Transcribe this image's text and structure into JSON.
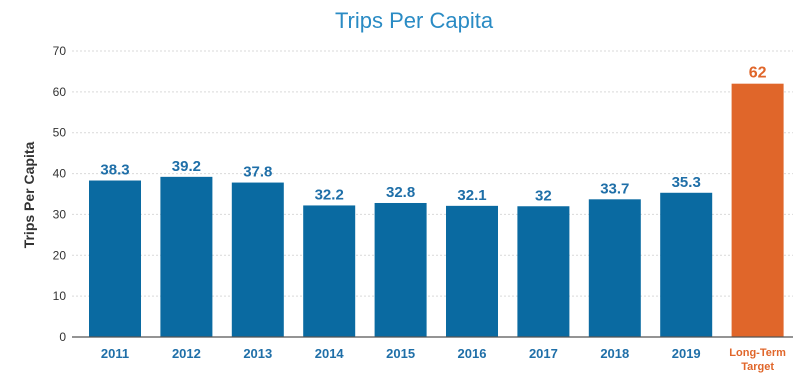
{
  "chart_data": {
    "type": "bar",
    "title": "Trips Per Capita",
    "xlabel": "",
    "ylabel": "Trips Per Capita",
    "ylim": [
      0,
      70
    ],
    "yticks": [
      0,
      10,
      20,
      30,
      40,
      50,
      60,
      70
    ],
    "grid": true,
    "legend": "none",
    "categories": [
      "2011",
      "2012",
      "2013",
      "2014",
      "2015",
      "2016",
      "2017",
      "2018",
      "2019",
      "Long-Term Target"
    ],
    "category_lines": [
      [
        "2011"
      ],
      [
        "2012"
      ],
      [
        "2013"
      ],
      [
        "2014"
      ],
      [
        "2015"
      ],
      [
        "2016"
      ],
      [
        "2017"
      ],
      [
        "2018"
      ],
      [
        "2019"
      ],
      [
        "Long-Term",
        "Target"
      ]
    ],
    "values": [
      38.3,
      39.2,
      37.8,
      32.2,
      32.8,
      32.1,
      32,
      33.7,
      35.3,
      62
    ],
    "data_labels": [
      "38.3",
      "39.2",
      "37.8",
      "32.2",
      "32.8",
      "32.1",
      "32",
      "33.7",
      "35.3",
      "62"
    ],
    "highlight_index": 9,
    "colors": {
      "bar": "#0a6aa1",
      "highlight": "#e0662a",
      "title": "#2a8bc4",
      "label": "#1f6fa8"
    }
  }
}
